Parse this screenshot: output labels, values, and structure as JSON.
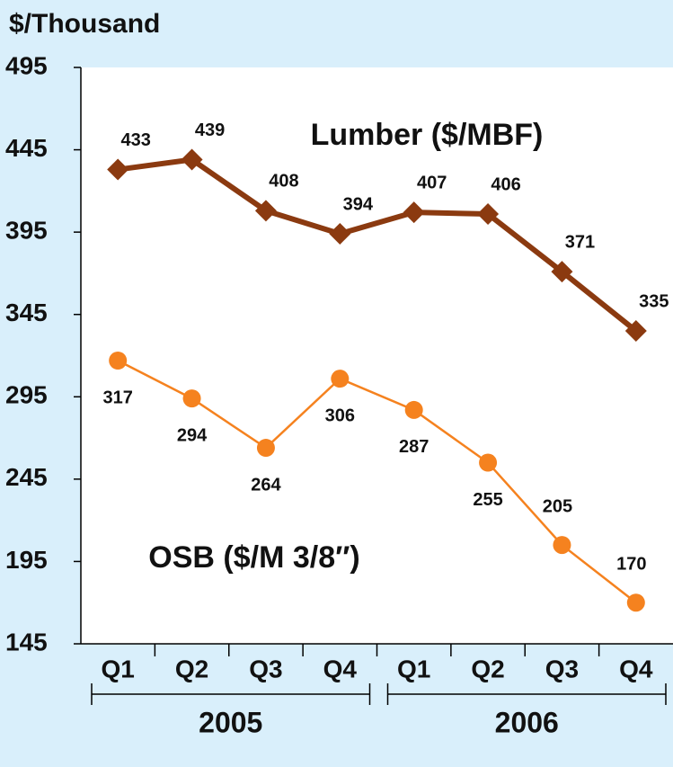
{
  "chart_data": {
    "type": "line",
    "y_label": "$/Thousand",
    "categories": [
      "Q1",
      "Q2",
      "Q3",
      "Q4",
      "Q1",
      "Q2",
      "Q3",
      "Q4"
    ],
    "year_groups": [
      "2005",
      "2006"
    ],
    "series": [
      {
        "name": "Lumber ($/MBF)",
        "color": "#8b3a10",
        "marker": "diamond",
        "values": [
          433,
          439,
          408,
          394,
          407,
          406,
          371,
          335
        ]
      },
      {
        "name": "OSB ($/M 3/8″)",
        "color": "#f5821f",
        "marker": "circle",
        "values": [
          317,
          294,
          264,
          306,
          287,
          255,
          205,
          170
        ]
      }
    ],
    "ylim": [
      145,
      495
    ],
    "yticks": [
      145,
      195,
      245,
      295,
      345,
      395,
      445,
      495
    ]
  }
}
